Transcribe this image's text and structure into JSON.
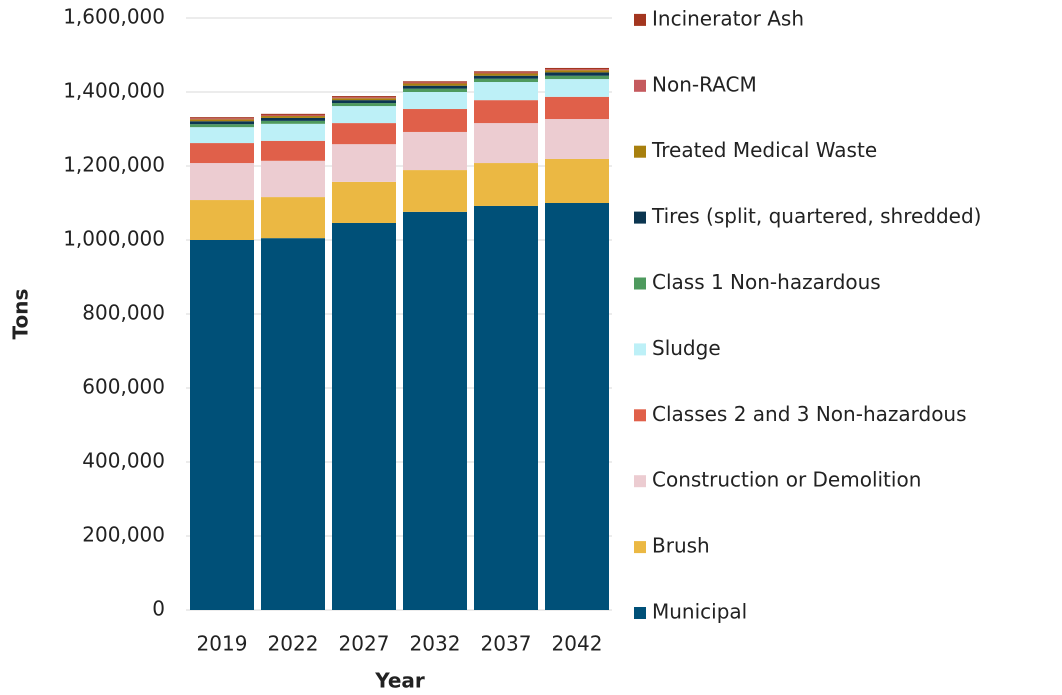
{
  "chart_data": {
    "type": "stacked_bar",
    "y_label": "Tons",
    "x_label": "Year",
    "categories": [
      "2019",
      "2022",
      "2027",
      "2032",
      "2037",
      "2042"
    ],
    "series": [
      {
        "name": "Municipal",
        "color": "#005078",
        "values": [
          1000000,
          1005000,
          1046000,
          1076000,
          1092000,
          1100000
        ]
      },
      {
        "name": "Brush",
        "color": "#ebb843",
        "values": [
          108000,
          111000,
          111000,
          113000,
          116000,
          119000
        ]
      },
      {
        "name": "Construction or Demolition",
        "color": "#ecccd1",
        "values": [
          100000,
          98000,
          102000,
          103000,
          108000,
          108000
        ]
      },
      {
        "name": "Classes 2 and 3 Non-hazardous",
        "color": "#e0604a",
        "values": [
          54000,
          54000,
          57000,
          62000,
          62000,
          60000
        ]
      },
      {
        "name": "Sludge",
        "color": "#bdf0f7",
        "values": [
          43000,
          46000,
          46000,
          46000,
          49000,
          48000
        ]
      },
      {
        "name": "Class 1 Non-hazardous",
        "color": "#4e9a5e",
        "values": [
          8000,
          8000,
          8000,
          9000,
          9000,
          9000
        ]
      },
      {
        "name": "Tires (split, quartered, shredded)",
        "color": "#0b3550",
        "values": [
          8000,
          8000,
          8000,
          8000,
          8000,
          9000
        ]
      },
      {
        "name": "Treated Medical Waste",
        "color": "#a8800e",
        "values": [
          5000,
          5000,
          5000,
          6000,
          6000,
          6000
        ]
      },
      {
        "name": "Non-RACM",
        "color": "#c55a5e",
        "values": [
          3000,
          3000,
          3000,
          3000,
          3000,
          3000
        ]
      },
      {
        "name": "Incinerator Ash",
        "color": "#a3361f",
        "values": [
          3000,
          3000,
          3000,
          3000,
          3000,
          3000
        ]
      }
    ],
    "ylim": [
      0,
      1600000
    ],
    "yticks": [
      0,
      {
        "value": 200000,
        "label": "200,000"
      },
      {
        "value": 400000,
        "label": "400,000"
      },
      {
        "value": 600000,
        "label": "600,000"
      },
      {
        "value": 800000,
        "label": "800,000"
      },
      {
        "value": 1000000,
        "label": "1,000,000"
      },
      {
        "value": 1200000,
        "label": "1,200,000"
      },
      {
        "value": 1400000,
        "label": "1,400,000"
      },
      {
        "value": 1600000,
        "label": "1,600,000"
      }
    ],
    "grid": true,
    "legend": "right"
  }
}
